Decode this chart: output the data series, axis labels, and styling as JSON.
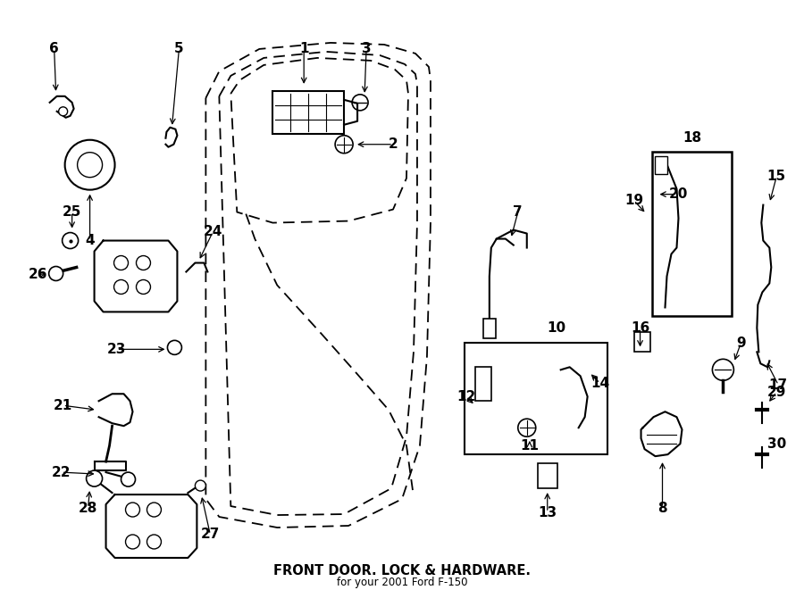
{
  "title": "FRONT DOOR. LOCK & HARDWARE.",
  "subtitle": "for your 2001 Ford F-150",
  "bg_color": "#ffffff",
  "line_color": "#000000"
}
